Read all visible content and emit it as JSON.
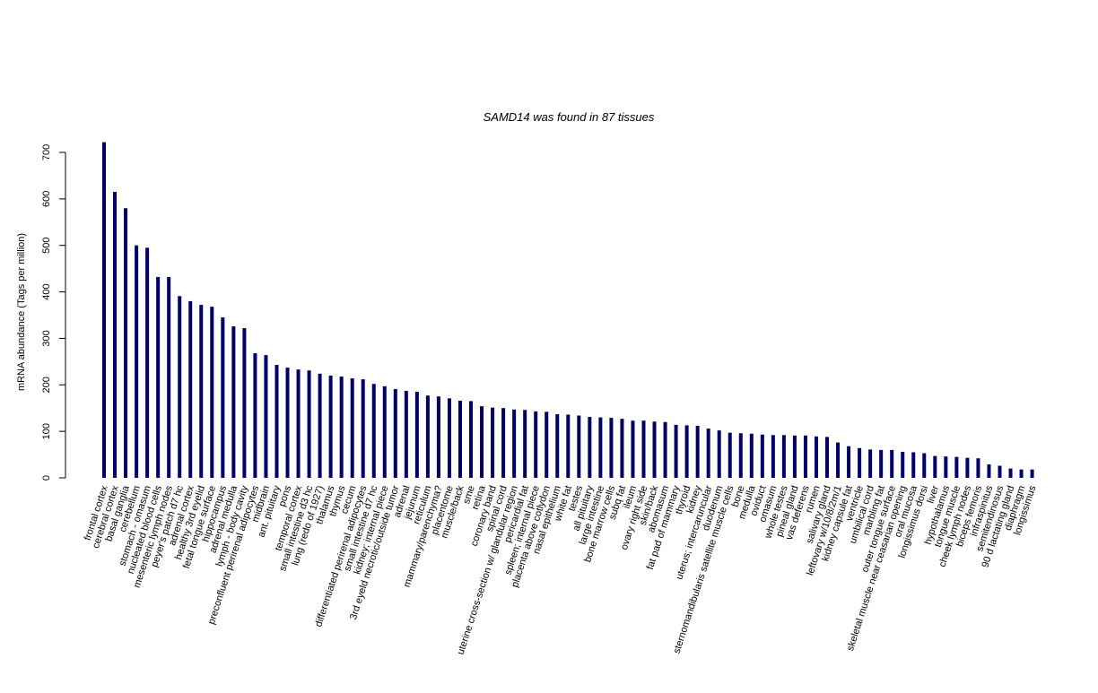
{
  "chart_data": {
    "type": "bar",
    "title": "SAMD14  was found in  87  tissues",
    "y_label": "mRNA abundance (Tags per million)",
    "color": "#000066",
    "ylim": [
      0,
      700
    ],
    "yticks": [
      0,
      100,
      200,
      300,
      400,
      500,
      600,
      700
    ],
    "categories": [
      "frontal cortex",
      "cerebral cortex",
      "basal ganglia",
      "cerebellum",
      "stomach - omasum",
      "nucleated blood cells",
      "mesenteric lymph nodes",
      "peyer's patch d7 hc",
      "adrenal cortex",
      "healthy 3rd eyelid",
      "fetal tongue surface",
      "hippocampus",
      "adrenal medulla",
      "lymph - body cavity",
      "preconfluent perirenal adipocytes",
      "midbrain",
      "ant. pituitary",
      "pons",
      "temporal cortex",
      "small intestine d3 hc",
      "lung (redo of 1927)",
      "thalamus",
      "thymus",
      "cecum",
      "differentiated perirenal adipocytes",
      "small intestine d7 hc",
      "kidney; internal piece",
      "3rd eyeld necrotic/outside tumor",
      "adrenal",
      "jejunum",
      "reticulum",
      "mammary/parenchyma?",
      "placentome",
      "muscle/back",
      "sme",
      "retina",
      "coronary band",
      "spinal cord",
      "uterine cross-section w/ glandular region",
      "pericardial fat",
      "spleen; internal piece",
      "placenta above cotlydon",
      "nasal epithelium",
      "white fat",
      "testes",
      "all pituitary",
      "large intestine",
      "bone marrow cells",
      "subq fat",
      "ileum",
      "ovary right side",
      "skin/back",
      "abomasum",
      "fat pad of mammary",
      "thyroid",
      "kidney",
      "uterus; intercaruncular",
      "duodenum",
      "sternomandibularis satellite muscle cells",
      "bone",
      "medulla",
      "oviduct",
      "omasum",
      "whole testes",
      "pineal gland",
      "vas deferens",
      "rumen",
      "salivary gland",
      "leftovary w/10/8/2m/1",
      "kidney capsule fat",
      "ventricle",
      "umbilical cord",
      "marbling fat",
      "outer tongue surface",
      "skeletal muscle near ceasarian opening",
      "oral mucosa",
      "longissimus dorsi",
      "liver",
      "hypothalamus",
      "tongue muscle",
      "cheek lymph nodes",
      "biceps femoris",
      "infraspinitus",
      "semitendinosus",
      "90 d lactating gland",
      "diaphragm",
      "longissimus"
    ],
    "values": [
      722,
      615,
      580,
      500,
      495,
      432,
      432,
      391,
      380,
      372,
      368,
      345,
      326,
      322,
      268,
      264,
      243,
      237,
      233,
      231,
      224,
      220,
      218,
      214,
      212,
      202,
      197,
      191,
      187,
      185,
      177,
      175,
      171,
      166,
      165,
      154,
      151,
      150,
      147,
      146,
      143,
      142,
      137,
      136,
      134,
      131,
      130,
      129,
      127,
      123,
      123,
      121,
      120,
      114,
      113,
      112,
      106,
      102,
      97,
      96,
      95,
      93,
      92,
      92,
      91,
      91,
      89,
      88,
      76,
      68,
      64,
      61,
      60,
      60,
      56,
      55,
      53,
      47,
      46,
      45,
      43,
      42,
      29,
      26,
      20,
      18,
      18
    ]
  }
}
